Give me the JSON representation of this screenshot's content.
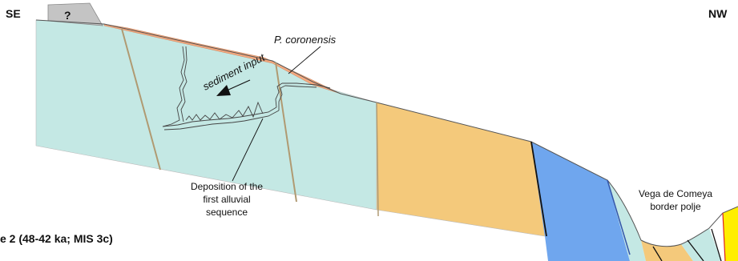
{
  "labels": {
    "se": "SE",
    "nw": "NW",
    "unknown": "?",
    "species": "P. coronensis",
    "sediment_input": "sediment input",
    "deposition": [
      "Deposition of the",
      "first alluvial",
      "sequence"
    ],
    "polje": [
      "Vega de Comeya",
      "border polje"
    ],
    "stage": "e 2 (48-42 ka; MIS 3c)"
  },
  "colors": {
    "limestone": "#c4e8e4",
    "sandstone": "#f4c97b",
    "shale": "#6fa6ee",
    "talus": "#f5a87e",
    "unknown_block": "#c4c4c4",
    "yellow_unit": "#ffee00",
    "fault": "#b09a72",
    "contact": "#111111"
  }
}
